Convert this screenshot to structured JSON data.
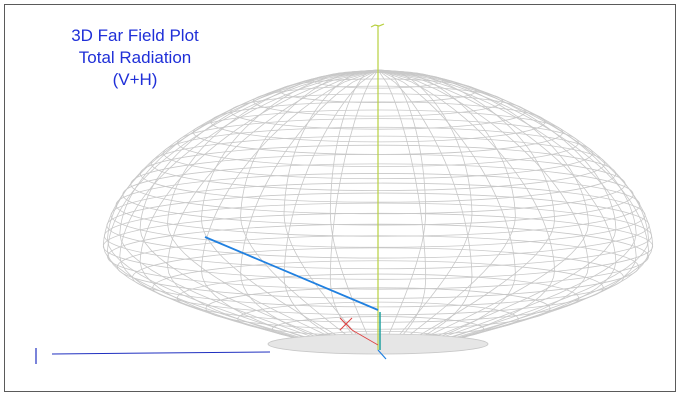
{
  "title": {
    "line1": "3D Far Field Plot",
    "line2": "Total Radiation",
    "line3": "(V+H)"
  },
  "colors": {
    "background": "#ffffff",
    "frame": "#5a5a5a",
    "title_text": "#1f2fd8",
    "mesh": "#c8c8c8",
    "z_axis": "#b8d040",
    "azimuth_line": "#2080e0",
    "x_axis_line": "#2030c0",
    "origin_marker": "#e04040",
    "vertical_marker": "#20a0a0"
  },
  "icons": {
    "z_axis_tip": "axis-tick-icon",
    "origin": "axis-origin-x-icon"
  }
}
